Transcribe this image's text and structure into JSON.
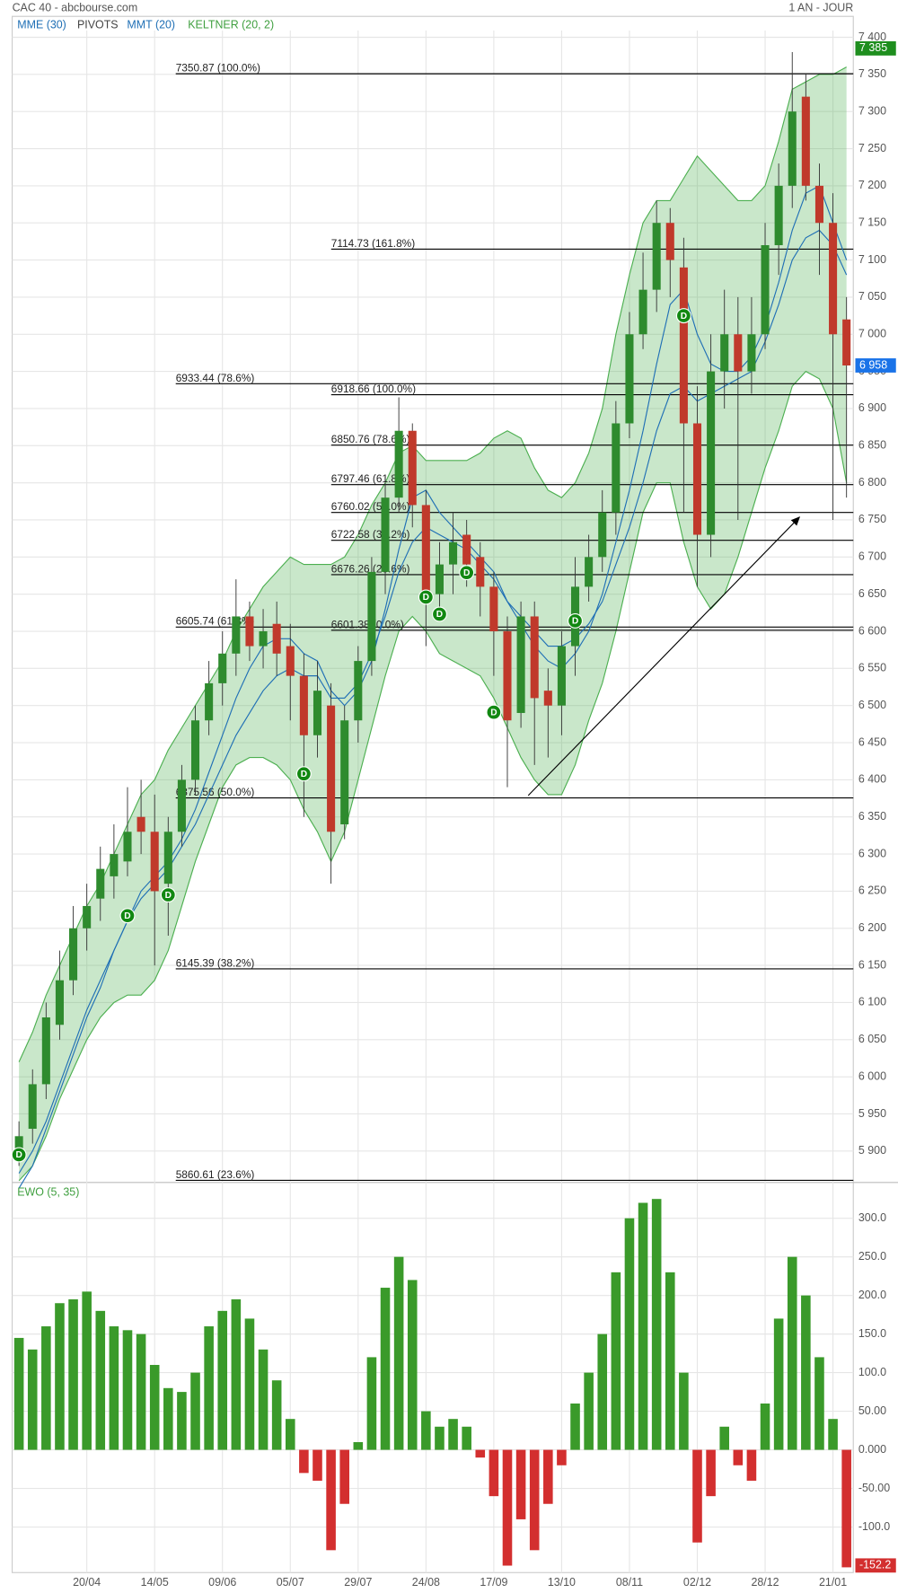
{
  "chart_data": [
    {
      "type": "candlestick",
      "title": "CAC 40 - abcbourse.com",
      "subtitle": "1 AN - JOUR",
      "open": [
        5900,
        5930,
        5990,
        6070,
        6130,
        6200,
        6240,
        6270,
        6290,
        6350,
        6330,
        6260,
        6330,
        6400,
        6480,
        6530,
        6570,
        6620,
        6580,
        6610,
        6580,
        6540,
        6460,
        6500,
        6340,
        6480,
        6560,
        6680,
        6780,
        6870,
        6770,
        6650,
        6690,
        6730,
        6700,
        6660,
        6600,
        6490,
        6620,
        6520,
        6500,
        6580,
        6660,
        6700,
        6760,
        6880,
        7000,
        7060,
        7150,
        7090,
        6880,
        6730,
        6950,
        7000,
        6950,
        7000,
        7120,
        7200,
        7320,
        7200,
        7150,
        7020
      ],
      "high": [
        5940,
        6010,
        6100,
        6170,
        6230,
        6260,
        6310,
        6340,
        6390,
        6400,
        6380,
        6350,
        6420,
        6500,
        6560,
        6600,
        6670,
        6640,
        6630,
        6640,
        6610,
        6570,
        6560,
        6530,
        6500,
        6580,
        6700,
        6800,
        6915,
        6880,
        6790,
        6720,
        6760,
        6750,
        6720,
        6680,
        6620,
        6640,
        6640,
        6550,
        6600,
        6700,
        6730,
        6790,
        6910,
        7030,
        7110,
        7180,
        7170,
        7130,
        6930,
        7000,
        7060,
        7050,
        7050,
        7150,
        7230,
        7380,
        7350,
        7230,
        7190,
        7050
      ],
      "low": [
        5880,
        5910,
        5970,
        6050,
        6110,
        6170,
        6210,
        6240,
        6270,
        6300,
        6150,
        6190,
        6310,
        6380,
        6460,
        6500,
        6540,
        6560,
        6550,
        6540,
        6480,
        6350,
        6430,
        6260,
        6320,
        6450,
        6540,
        6650,
        6760,
        6740,
        6580,
        6620,
        6650,
        6660,
        6620,
        6540,
        6390,
        6470,
        6420,
        6430,
        6460,
        6540,
        6640,
        6680,
        6730,
        6860,
        6980,
        7030,
        7050,
        6760,
        6660,
        6700,
        6900,
        6750,
        6920,
        6980,
        7080,
        7170,
        7180,
        7080,
        6750,
        6780
      ],
      "close": [
        5920,
        5990,
        6080,
        6130,
        6200,
        6230,
        6280,
        6300,
        6330,
        6330,
        6250,
        6330,
        6400,
        6480,
        6530,
        6570,
        6620,
        6580,
        6600,
        6570,
        6540,
        6460,
        6520,
        6330,
        6480,
        6560,
        6680,
        6780,
        6870,
        6770,
        6650,
        6690,
        6720,
        6690,
        6660,
        6600,
        6480,
        6620,
        6510,
        6500,
        6580,
        6660,
        6700,
        6760,
        6880,
        7000,
        7060,
        7150,
        7100,
        6880,
        6730,
        6950,
        7000,
        6950,
        7000,
        7120,
        7200,
        7300,
        7200,
        7150,
        7000,
        6958
      ],
      "up_color": "#2e8b2e",
      "down_color": "#c0392b",
      "series": [
        {
          "name": "MME (30)",
          "color": "#1f6fb5",
          "values": [
            5870,
            5900,
            5940,
            5990,
            6040,
            6090,
            6130,
            6170,
            6210,
            6240,
            6260,
            6280,
            6310,
            6340,
            6380,
            6420,
            6460,
            6490,
            6520,
            6540,
            6550,
            6540,
            6540,
            6510,
            6510,
            6530,
            6570,
            6620,
            6680,
            6720,
            6740,
            6730,
            6720,
            6710,
            6690,
            6670,
            6640,
            6620,
            6600,
            6580,
            6580,
            6590,
            6610,
            6640,
            6690,
            6740,
            6800,
            6870,
            6920,
            6930,
            6910,
            6920,
            6930,
            6940,
            6950,
            6990,
            7040,
            7100,
            7130,
            7140,
            7120,
            7080
          ]
        },
        {
          "name": "MMT (20)",
          "color": "#1f6fb5",
          "values": [
            5850,
            5880,
            5930,
            5980,
            6030,
            6080,
            6120,
            6170,
            6210,
            6250,
            6270,
            6290,
            6320,
            6360,
            6410,
            6460,
            6510,
            6550,
            6580,
            6590,
            6590,
            6570,
            6560,
            6520,
            6500,
            6520,
            6560,
            6630,
            6710,
            6780,
            6790,
            6760,
            6740,
            6720,
            6700,
            6680,
            6640,
            6610,
            6580,
            6560,
            6550,
            6570,
            6600,
            6650,
            6720,
            6790,
            6870,
            6960,
            7040,
            7060,
            7000,
            6960,
            6950,
            6950,
            6970,
            7010,
            7070,
            7140,
            7190,
            7200,
            7150,
            7100
          ]
        }
      ],
      "pivots_label": "PIVOTS",
      "band": {
        "name": "KELTNER (20, 2)",
        "color": "#4caf50",
        "upper": [
          6020,
          6060,
          6110,
          6150,
          6190,
          6230,
          6260,
          6300,
          6340,
          6380,
          6400,
          6440,
          6470,
          6500,
          6530,
          6560,
          6600,
          6630,
          6660,
          6680,
          6700,
          6690,
          6690,
          6690,
          6700,
          6730,
          6770,
          6800,
          6840,
          6850,
          6830,
          6830,
          6830,
          6830,
          6840,
          6860,
          6870,
          6860,
          6820,
          6790,
          6780,
          6800,
          6840,
          6900,
          7000,
          7080,
          7150,
          7180,
          7180,
          7210,
          7240,
          7220,
          7200,
          7180,
          7180,
          7200,
          7260,
          7330,
          7340,
          7350,
          7350,
          7360
        ],
        "lower": [
          5860,
          5880,
          5920,
          5970,
          6010,
          6050,
          6080,
          6100,
          6110,
          6110,
          6130,
          6170,
          6230,
          6290,
          6340,
          6390,
          6420,
          6430,
          6430,
          6420,
          6400,
          6360,
          6330,
          6290,
          6330,
          6400,
          6470,
          6540,
          6600,
          6620,
          6600,
          6570,
          6560,
          6550,
          6540,
          6510,
          6470,
          6430,
          6400,
          6380,
          6380,
          6420,
          6480,
          6530,
          6600,
          6680,
          6760,
          6800,
          6800,
          6720,
          6660,
          6630,
          6650,
          6700,
          6760,
          6820,
          6870,
          6930,
          6950,
          6940,
          6900,
          6800
        ]
      },
      "signals": {
        "label": "D",
        "index": [
          0,
          8,
          11,
          21,
          30,
          31,
          33,
          35,
          41,
          49
        ],
        "values": [
          5895,
          6217,
          6245,
          6408,
          6646,
          6623,
          6679,
          6491,
          6614,
          7025
        ]
      },
      "fibonacci": [
        [
          {
            "value": 7350.87,
            "label": "7350.87  (100.0%)"
          },
          {
            "value": 6933.44,
            "label": "6933.44  (78.6%)"
          },
          {
            "value": 6605.74,
            "label": "6605.74  (61.8%)"
          },
          {
            "value": 6375.56,
            "label": "6375.56  (50.0%)"
          },
          {
            "value": 6145.39,
            "label": "6145.39  (38.2%)"
          },
          {
            "value": 5860.61,
            "label": "5860.61  (23.6%)"
          }
        ],
        [
          {
            "value": 7114.73,
            "label": "7114.73  (161.8%)"
          },
          {
            "value": 6918.66,
            "label": "6918.66  (100.0%)"
          },
          {
            "value": 6850.76,
            "label": "6850.76  (78.6%)"
          },
          {
            "value": 6797.46,
            "label": "6797.46  (61.8%)"
          },
          {
            "value": 6760.02,
            "label": "6760.02  (50.0%)"
          },
          {
            "value": 6722.58,
            "label": "6722.58  (38.2%)"
          },
          {
            "value": 6676.26,
            "label": "6676.26  (23.6%)"
          },
          {
            "value": 6601.38,
            "label": "6601.38  (0.0%)"
          }
        ]
      ],
      "last_labels": [
        {
          "value": 7385,
          "label": "7 385",
          "color": "#1e8e1e"
        },
        {
          "value": 6958,
          "label": "6 958",
          "color": "#1a73e8"
        }
      ],
      "ylim": [
        5859,
        7409
      ],
      "yticks": [
        {
          "value": 5900,
          "label": "5 900"
        },
        {
          "value": 5950,
          "label": "5 950"
        },
        {
          "value": 6000,
          "label": "6 000"
        },
        {
          "value": 6050,
          "label": "6 050"
        },
        {
          "value": 6100,
          "label": "6 100"
        },
        {
          "value": 6150,
          "label": "6 150"
        },
        {
          "value": 6200,
          "label": "6 200"
        },
        {
          "value": 6250,
          "label": "6 250"
        },
        {
          "value": 6300,
          "label": "6 300"
        },
        {
          "value": 6350,
          "label": "6 350"
        },
        {
          "value": 6400,
          "label": "6 400"
        },
        {
          "value": 6450,
          "label": "6 450"
        },
        {
          "value": 6500,
          "label": "6 500"
        },
        {
          "value": 6550,
          "label": "6 550"
        },
        {
          "value": 6600,
          "label": "6 600"
        },
        {
          "value": 6650,
          "label": "6 650"
        },
        {
          "value": 6700,
          "label": "6 700"
        },
        {
          "value": 6750,
          "label": "6 750"
        },
        {
          "value": 6800,
          "label": "6 800"
        },
        {
          "value": 6850,
          "label": "6 850"
        },
        {
          "value": 6900,
          "label": "6 900"
        },
        {
          "value": 6950,
          "label": "6 950"
        },
        {
          "value": 7000,
          "label": "7 000"
        },
        {
          "value": 7050,
          "label": "7 050"
        },
        {
          "value": 7100,
          "label": "7 100"
        },
        {
          "value": 7150,
          "label": "7 150"
        },
        {
          "value": 7200,
          "label": "7 200"
        },
        {
          "value": 7250,
          "label": "7 250"
        },
        {
          "value": 7300,
          "label": "7 300"
        },
        {
          "value": 7350,
          "label": "7 350"
        },
        {
          "value": 7400,
          "label": "7 400"
        }
      ],
      "grid": true
    },
    {
      "type": "bar",
      "title": "EWO (5, 35)",
      "color": "#3a9a2a",
      "down_color": "#d32f2f",
      "categories": [
        null,
        null,
        null,
        null,
        null,
        "20/04",
        null,
        null,
        null,
        null,
        "14/05",
        null,
        null,
        null,
        null,
        "09/06",
        null,
        null,
        null,
        null,
        "05/07",
        null,
        null,
        null,
        null,
        "29/07",
        null,
        null,
        null,
        null,
        "24/08",
        null,
        null,
        null,
        null,
        "17/09",
        null,
        null,
        null,
        null,
        "13/10",
        null,
        null,
        null,
        null,
        "08/11",
        null,
        null,
        null,
        null,
        "02/12",
        null,
        null,
        null,
        null,
        "28/12",
        null,
        null,
        null,
        null,
        "21/01",
        null
      ],
      "values": [
        145,
        130,
        160,
        190,
        195,
        205,
        180,
        160,
        155,
        150,
        110,
        80,
        75,
        100,
        160,
        180,
        195,
        170,
        130,
        90,
        40,
        -30,
        -40,
        -130,
        -70,
        10,
        120,
        210,
        250,
        220,
        50,
        30,
        40,
        30,
        -10,
        -60,
        -150,
        -90,
        -130,
        -70,
        -20,
        60,
        100,
        150,
        230,
        300,
        320,
        325,
        230,
        100,
        -120,
        -60,
        30,
        -20,
        -40,
        60,
        170,
        250,
        200,
        120,
        40,
        -152.2
      ],
      "ylim": [
        -159,
        345
      ],
      "yticks": [
        {
          "value": -100,
          "label": "-100.0"
        },
        {
          "value": -50,
          "label": "-50.00"
        },
        {
          "value": 0,
          "label": "0.000"
        },
        {
          "value": 50,
          "label": "50.00"
        },
        {
          "value": 100,
          "label": "100.0"
        },
        {
          "value": 150,
          "label": "150.0"
        },
        {
          "value": 200,
          "label": "200.0"
        },
        {
          "value": 250,
          "label": "250.0"
        },
        {
          "value": 300,
          "label": "300.0"
        }
      ],
      "grid": true
    }
  ]
}
